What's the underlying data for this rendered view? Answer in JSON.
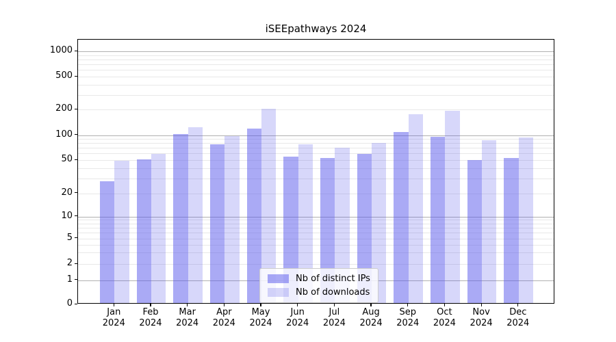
{
  "title": "iSEEpathways 2024",
  "legend": {
    "items": [
      "Nb of distinct IPs",
      "Nb of downloads"
    ]
  },
  "chart_data": {
    "type": "bar",
    "title": "iSEEpathways 2024",
    "categories": [
      "Jan",
      "Feb",
      "Mar",
      "Apr",
      "May",
      "Jun",
      "Jul",
      "Aug",
      "Sep",
      "Oct",
      "Nov",
      "Dec"
    ],
    "year": "2024",
    "series": [
      {
        "name": "Nb of distinct IPs",
        "values": [
          27,
          49,
          100,
          75,
          115,
          53,
          51,
          57,
          105,
          92,
          48,
          51
        ]
      },
      {
        "name": "Nb of downloads",
        "values": [
          47,
          57,
          120,
          94,
          197,
          75,
          68,
          77,
          170,
          187,
          84,
          91
        ]
      }
    ],
    "yticks": [
      0,
      1,
      2,
      5,
      10,
      20,
      50,
      100,
      200,
      500,
      1000
    ],
    "major_yticks": [
      1,
      10,
      100,
      1000
    ],
    "y_scale": "log-like with 0 baseline",
    "ylim": [
      0,
      1200
    ],
    "grid": true,
    "legend_position": "lower center inside plot",
    "colors": {
      "bar_base": "#5555eb",
      "distinct_ips_fill": "rgba(85,85,235,0.50)",
      "downloads_fill": "rgba(85,85,235,0.235)",
      "major_grid": "#b0b0b0",
      "minor_grid": "#e8e8e8"
    }
  }
}
